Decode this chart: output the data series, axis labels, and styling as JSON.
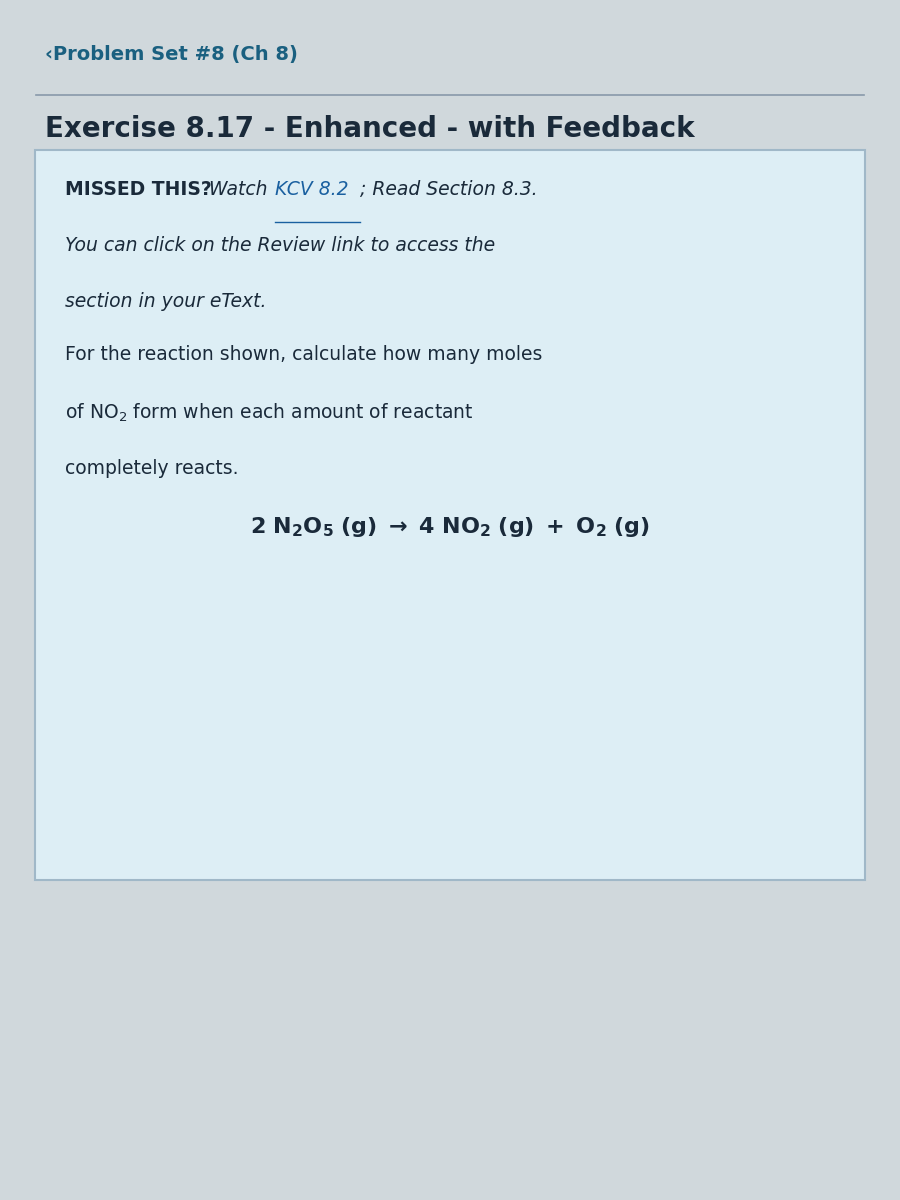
{
  "bg_color": "#d0d8dc",
  "box_bg": "#ddeef5",
  "box_border": "#a0b8c8",
  "header_text": "‹Problem Set #8 (Ch 8)",
  "header_color": "#1a6080",
  "title_text": "Exercise 8.17 - Enhanced - with Feedback",
  "title_color": "#1a2a3a",
  "missed_bold": "MISSED THIS?",
  "kcv_link": "KCV 8.2",
  "missed_rest": "; Read Section 8.3.",
  "line2": "You can click on the Review link to access the",
  "line3": "section in your eText.",
  "para2_line1": "For the reaction shown, calculate how many moles",
  "para2_line3": "completely reacts.",
  "text_color": "#1a2a3a",
  "link_color": "#1a60a0",
  "separator_color": "#8899aa"
}
